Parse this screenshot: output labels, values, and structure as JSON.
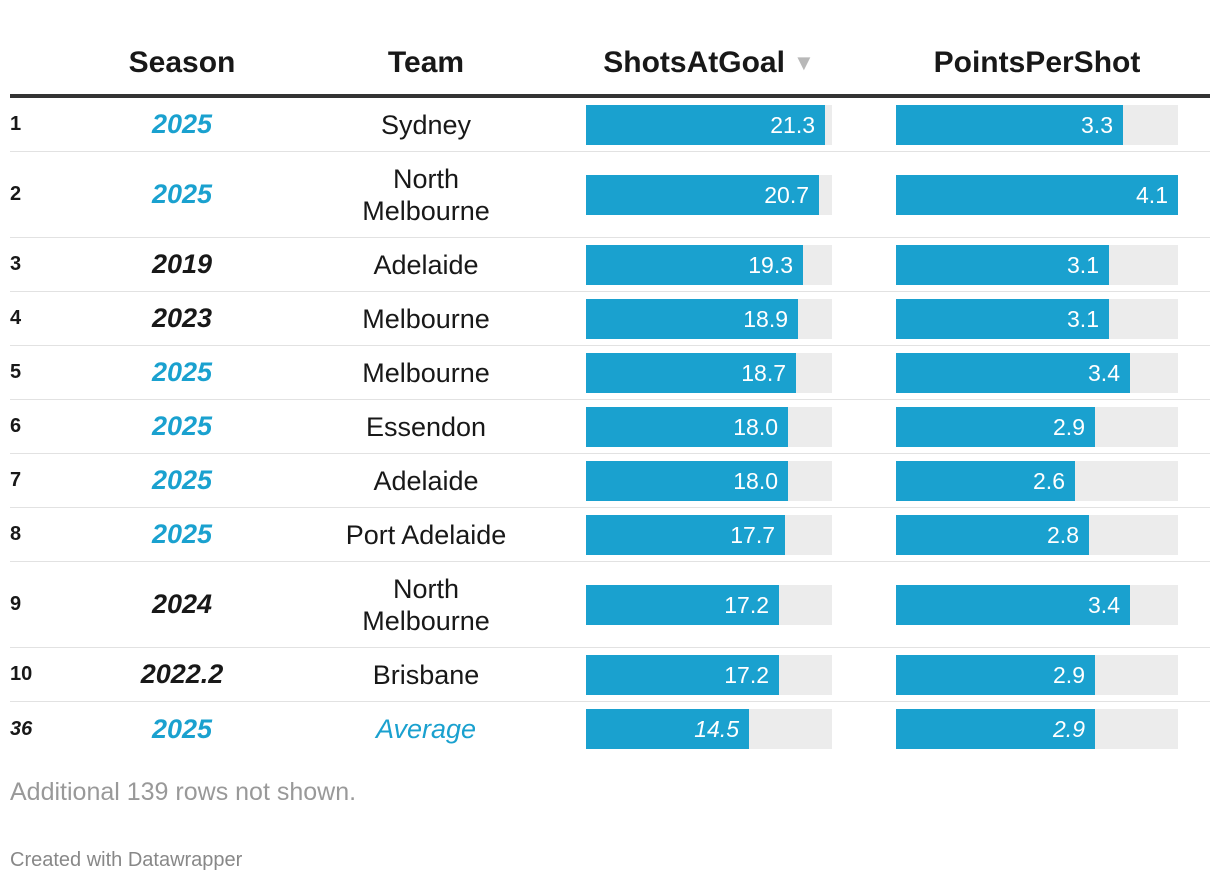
{
  "table": {
    "headers": {
      "season": "Season",
      "team": "Team",
      "shots": "ShotsAtGoal",
      "pps": "PointsPerShot",
      "sort_icon": "▼"
    },
    "colors": {
      "highlight": "#1aa1cf",
      "default_text": "#181818",
      "bar_fill": "#1aa1cf",
      "bar_track": "#ececec"
    }
  },
  "chart_data": {
    "type": "table",
    "title": "",
    "columns": [
      "Season",
      "Team",
      "ShotsAtGoal",
      "PointsPerShot"
    ],
    "sorted_by": "ShotsAtGoal",
    "sort_order": "descending",
    "ranges": {
      "ShotsAtGoal": [
        0,
        21.9
      ],
      "PointsPerShot": [
        0,
        4.1
      ]
    },
    "rows": [
      {
        "rank": "1",
        "season": "2025",
        "team": [
          "Sydney"
        ],
        "shots": 21.3,
        "pps": 3.3,
        "highlight": true,
        "average": false
      },
      {
        "rank": "2",
        "season": "2025",
        "team": [
          "North",
          "Melbourne"
        ],
        "shots": 20.7,
        "pps": 4.1,
        "highlight": true,
        "average": false
      },
      {
        "rank": "3",
        "season": "2019",
        "team": [
          "Adelaide"
        ],
        "shots": 19.3,
        "pps": 3.1,
        "highlight": false,
        "average": false
      },
      {
        "rank": "4",
        "season": "2023",
        "team": [
          "Melbourne"
        ],
        "shots": 18.9,
        "pps": 3.1,
        "highlight": false,
        "average": false
      },
      {
        "rank": "5",
        "season": "2025",
        "team": [
          "Melbourne"
        ],
        "shots": 18.7,
        "pps": 3.4,
        "highlight": true,
        "average": false
      },
      {
        "rank": "6",
        "season": "2025",
        "team": [
          "Essendon"
        ],
        "shots": 18.0,
        "pps": 2.9,
        "highlight": true,
        "average": false
      },
      {
        "rank": "7",
        "season": "2025",
        "team": [
          "Adelaide"
        ],
        "shots": 18.0,
        "pps": 2.6,
        "highlight": true,
        "average": false
      },
      {
        "rank": "8",
        "season": "2025",
        "team": [
          "Port Adelaide"
        ],
        "shots": 17.7,
        "pps": 2.8,
        "highlight": true,
        "average": false
      },
      {
        "rank": "9",
        "season": "2024",
        "team": [
          "North",
          "Melbourne"
        ],
        "shots": 17.2,
        "pps": 3.4,
        "highlight": false,
        "average": false
      },
      {
        "rank": "10",
        "season": "2022.2",
        "team": [
          "Brisbane"
        ],
        "shots": 17.2,
        "pps": 2.9,
        "highlight": false,
        "average": false
      },
      {
        "rank": "36",
        "season": "2025",
        "team": [
          "Average"
        ],
        "shots": 14.5,
        "pps": 2.9,
        "highlight": true,
        "average": true
      }
    ]
  },
  "footer": {
    "note": "Additional 139 rows not shown.",
    "credit": "Created with Datawrapper"
  }
}
